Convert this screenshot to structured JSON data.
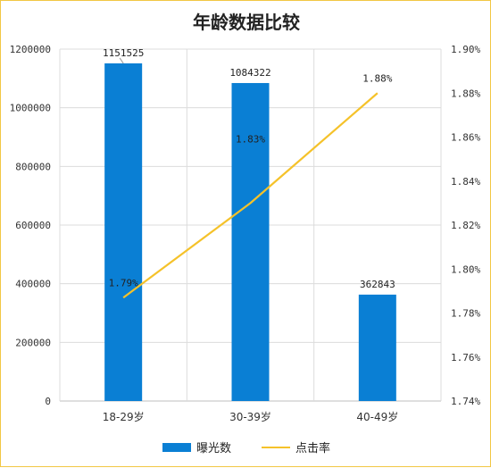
{
  "chart_data": {
    "type": "bar",
    "title": "年龄数据比较",
    "categories": [
      "18-29岁",
      "30-39岁",
      "40-49岁"
    ],
    "series": [
      {
        "name": "曝光数",
        "type": "bar",
        "axis": "left",
        "values": [
          1151525,
          1084322,
          362843
        ],
        "labels": [
          "1151525",
          "1084322",
          "362843"
        ],
        "color": "#0a7fd4"
      },
      {
        "name": "点击率",
        "type": "line",
        "axis": "right",
        "values": [
          1.787,
          1.83,
          1.88
        ],
        "labels": [
          "1.79%",
          "1.83%",
          "1.88%"
        ],
        "color": "#f5c22a"
      }
    ],
    "y_left": {
      "min": 0,
      "max": 1200000,
      "ticks": [
        "0",
        "200000",
        "400000",
        "600000",
        "800000",
        "1000000",
        "1200000"
      ]
    },
    "y_right": {
      "min": 1.74,
      "max": 1.9,
      "ticks": [
        "1.74%",
        "1.76%",
        "1.78%",
        "1.80%",
        "1.82%",
        "1.84%",
        "1.86%",
        "1.88%",
        "1.90%"
      ]
    },
    "grid": true,
    "legend": "bottom-center"
  }
}
